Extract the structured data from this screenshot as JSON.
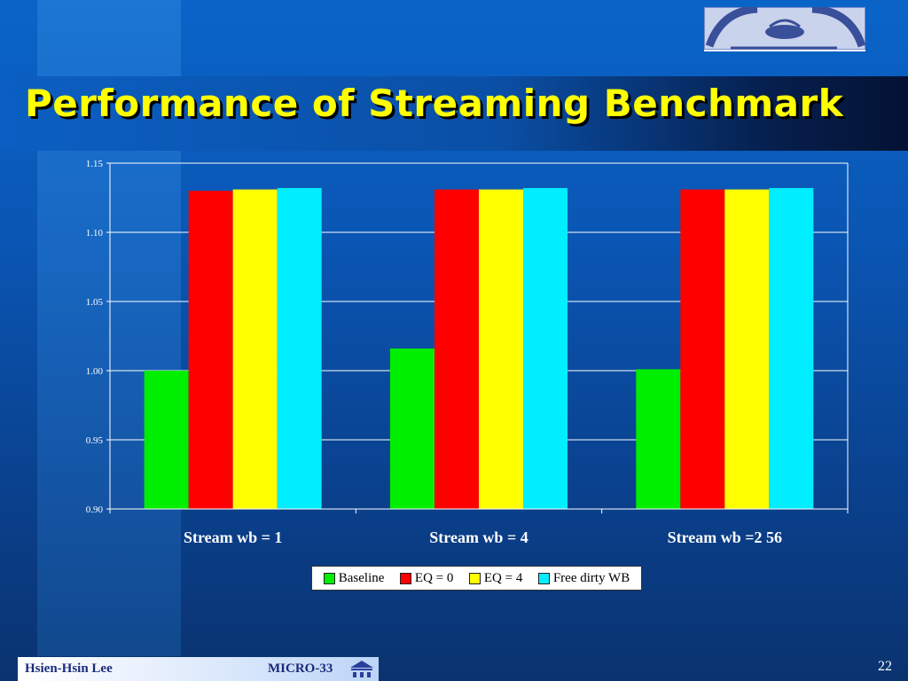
{
  "slide": {
    "title": "Performance of Streaming Benchmark",
    "footer_author": "Hsien-Hsin Lee",
    "footer_conference": "MICRO-33",
    "page_number": "22",
    "colors": {
      "title": "#ffff00",
      "background": "#0a56b4"
    }
  },
  "chart_data": {
    "type": "bar",
    "categories": [
      "Stream wb = 1",
      "Stream wb = 4",
      "Stream wb =2 56"
    ],
    "series": [
      {
        "name": "Baseline",
        "color": "#00ee00",
        "values": [
          1.0,
          1.016,
          1.001
        ]
      },
      {
        "name": "EQ = 0",
        "color": "#ff0000",
        "values": [
          1.13,
          1.131,
          1.131
        ]
      },
      {
        "name": "EQ = 4",
        "color": "#ffff00",
        "values": [
          1.131,
          1.131,
          1.131
        ]
      },
      {
        "name": "Free dirty WB",
        "color": "#00eeff",
        "values": [
          1.132,
          1.132,
          1.132
        ]
      }
    ],
    "ylim": [
      0.9,
      1.15
    ],
    "yticks": [
      "0.90",
      "0.95",
      "1.00",
      "1.05",
      "1.10",
      "1.15"
    ],
    "grid": true,
    "legend_position": "bottom"
  }
}
